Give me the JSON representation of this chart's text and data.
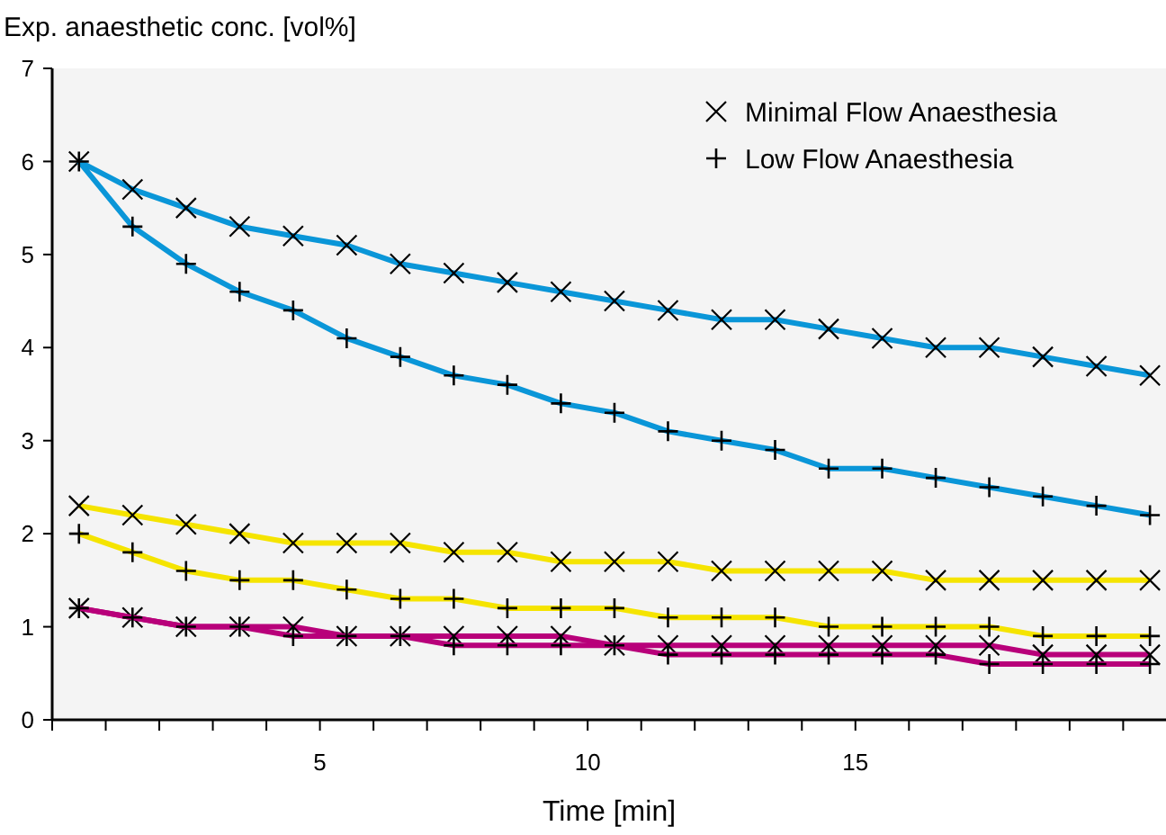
{
  "chart_data": {
    "type": "line",
    "ylabel": "Exp. anaesthetic conc. [vol%]",
    "xlabel": "Time [min]",
    "xlim": [
      0,
      20.8
    ],
    "xticks": [
      {
        "value": 0,
        "label": null
      },
      {
        "value": 1,
        "label": null
      },
      {
        "value": 2,
        "label": null
      },
      {
        "value": 3,
        "label": null
      },
      {
        "value": 4,
        "label": null
      },
      5,
      {
        "value": 6,
        "label": null
      },
      {
        "value": 7,
        "label": null
      },
      {
        "value": 8,
        "label": null
      },
      {
        "value": 9,
        "label": null
      },
      10,
      {
        "value": 11,
        "label": null
      },
      {
        "value": 12,
        "label": null
      },
      {
        "value": 13,
        "label": null
      },
      {
        "value": 14,
        "label": null
      },
      15,
      {
        "value": 16,
        "label": null
      },
      {
        "value": 17,
        "label": null
      },
      {
        "value": 18,
        "label": null
      },
      {
        "value": 19,
        "label": null
      },
      {
        "value": 20,
        "label": null
      }
    ],
    "ylim": [
      0,
      7
    ],
    "yticks": [
      0,
      1,
      2,
      3,
      4,
      5,
      6,
      7
    ],
    "x": [
      0.5,
      1.5,
      2.5,
      3.5,
      4.5,
      5.5,
      6.5,
      7.5,
      8.5,
      9.5,
      10.5,
      11.5,
      12.5,
      13.5,
      14.5,
      15.5,
      16.5,
      17.5,
      18.5,
      19.5,
      20.5
    ],
    "grid": false,
    "legend": "top right",
    "line_style": "solid",
    "series": [
      {
        "name": "Minimal Flow Anaesthesia",
        "marker": "cross",
        "color": "#0a96d8",
        "values": [
          6,
          5.7,
          5.5,
          5.3,
          5.2,
          5.1,
          4.9,
          4.8,
          4.7,
          4.6,
          4.5,
          4.4,
          4.3,
          4.3,
          4.2,
          4.1,
          4.0,
          4.0,
          3.9,
          3.8,
          3.7
        ]
      },
      {
        "name": "Low Flow Anaesthesia",
        "marker": "plus",
        "color": "#0a96d8",
        "values": [
          6,
          5.3,
          4.9,
          4.6,
          4.4,
          4.1,
          3.9,
          3.7,
          3.6,
          3.4,
          3.3,
          3.1,
          3.0,
          2.9,
          2.7,
          2.7,
          2.6,
          2.5,
          2.4,
          2.3,
          2.2
        ]
      },
      {
        "marker": "cross",
        "color": "#f5e400",
        "values": [
          2.3,
          2.2,
          2.1,
          2.0,
          1.9,
          1.9,
          1.9,
          1.8,
          1.8,
          1.7,
          1.7,
          1.7,
          1.6,
          1.6,
          1.6,
          1.6,
          1.5,
          1.5,
          1.5,
          1.5,
          1.5
        ]
      },
      {
        "marker": "plus",
        "color": "#f5e400",
        "values": [
          2.0,
          1.8,
          1.6,
          1.5,
          1.5,
          1.4,
          1.3,
          1.3,
          1.2,
          1.2,
          1.2,
          1.1,
          1.1,
          1.1,
          1.0,
          1.0,
          1.0,
          1.0,
          0.9,
          0.9,
          0.9
        ]
      },
      {
        "marker": "cross",
        "color": "#b8007a",
        "values": [
          1.2,
          1.1,
          1.0,
          1.0,
          1.0,
          0.9,
          0.9,
          0.9,
          0.9,
          0.9,
          0.8,
          0.8,
          0.8,
          0.8,
          0.8,
          0.8,
          0.8,
          0.8,
          0.7,
          0.7,
          0.7
        ]
      },
      {
        "marker": "plus",
        "color": "#b8007a",
        "values": [
          1.2,
          1.1,
          1.0,
          1.0,
          0.9,
          0.9,
          0.9,
          0.8,
          0.8,
          0.8,
          0.8,
          0.7,
          0.7,
          0.7,
          0.7,
          0.7,
          0.7,
          0.6,
          0.6,
          0.6,
          0.6
        ]
      }
    ]
  }
}
